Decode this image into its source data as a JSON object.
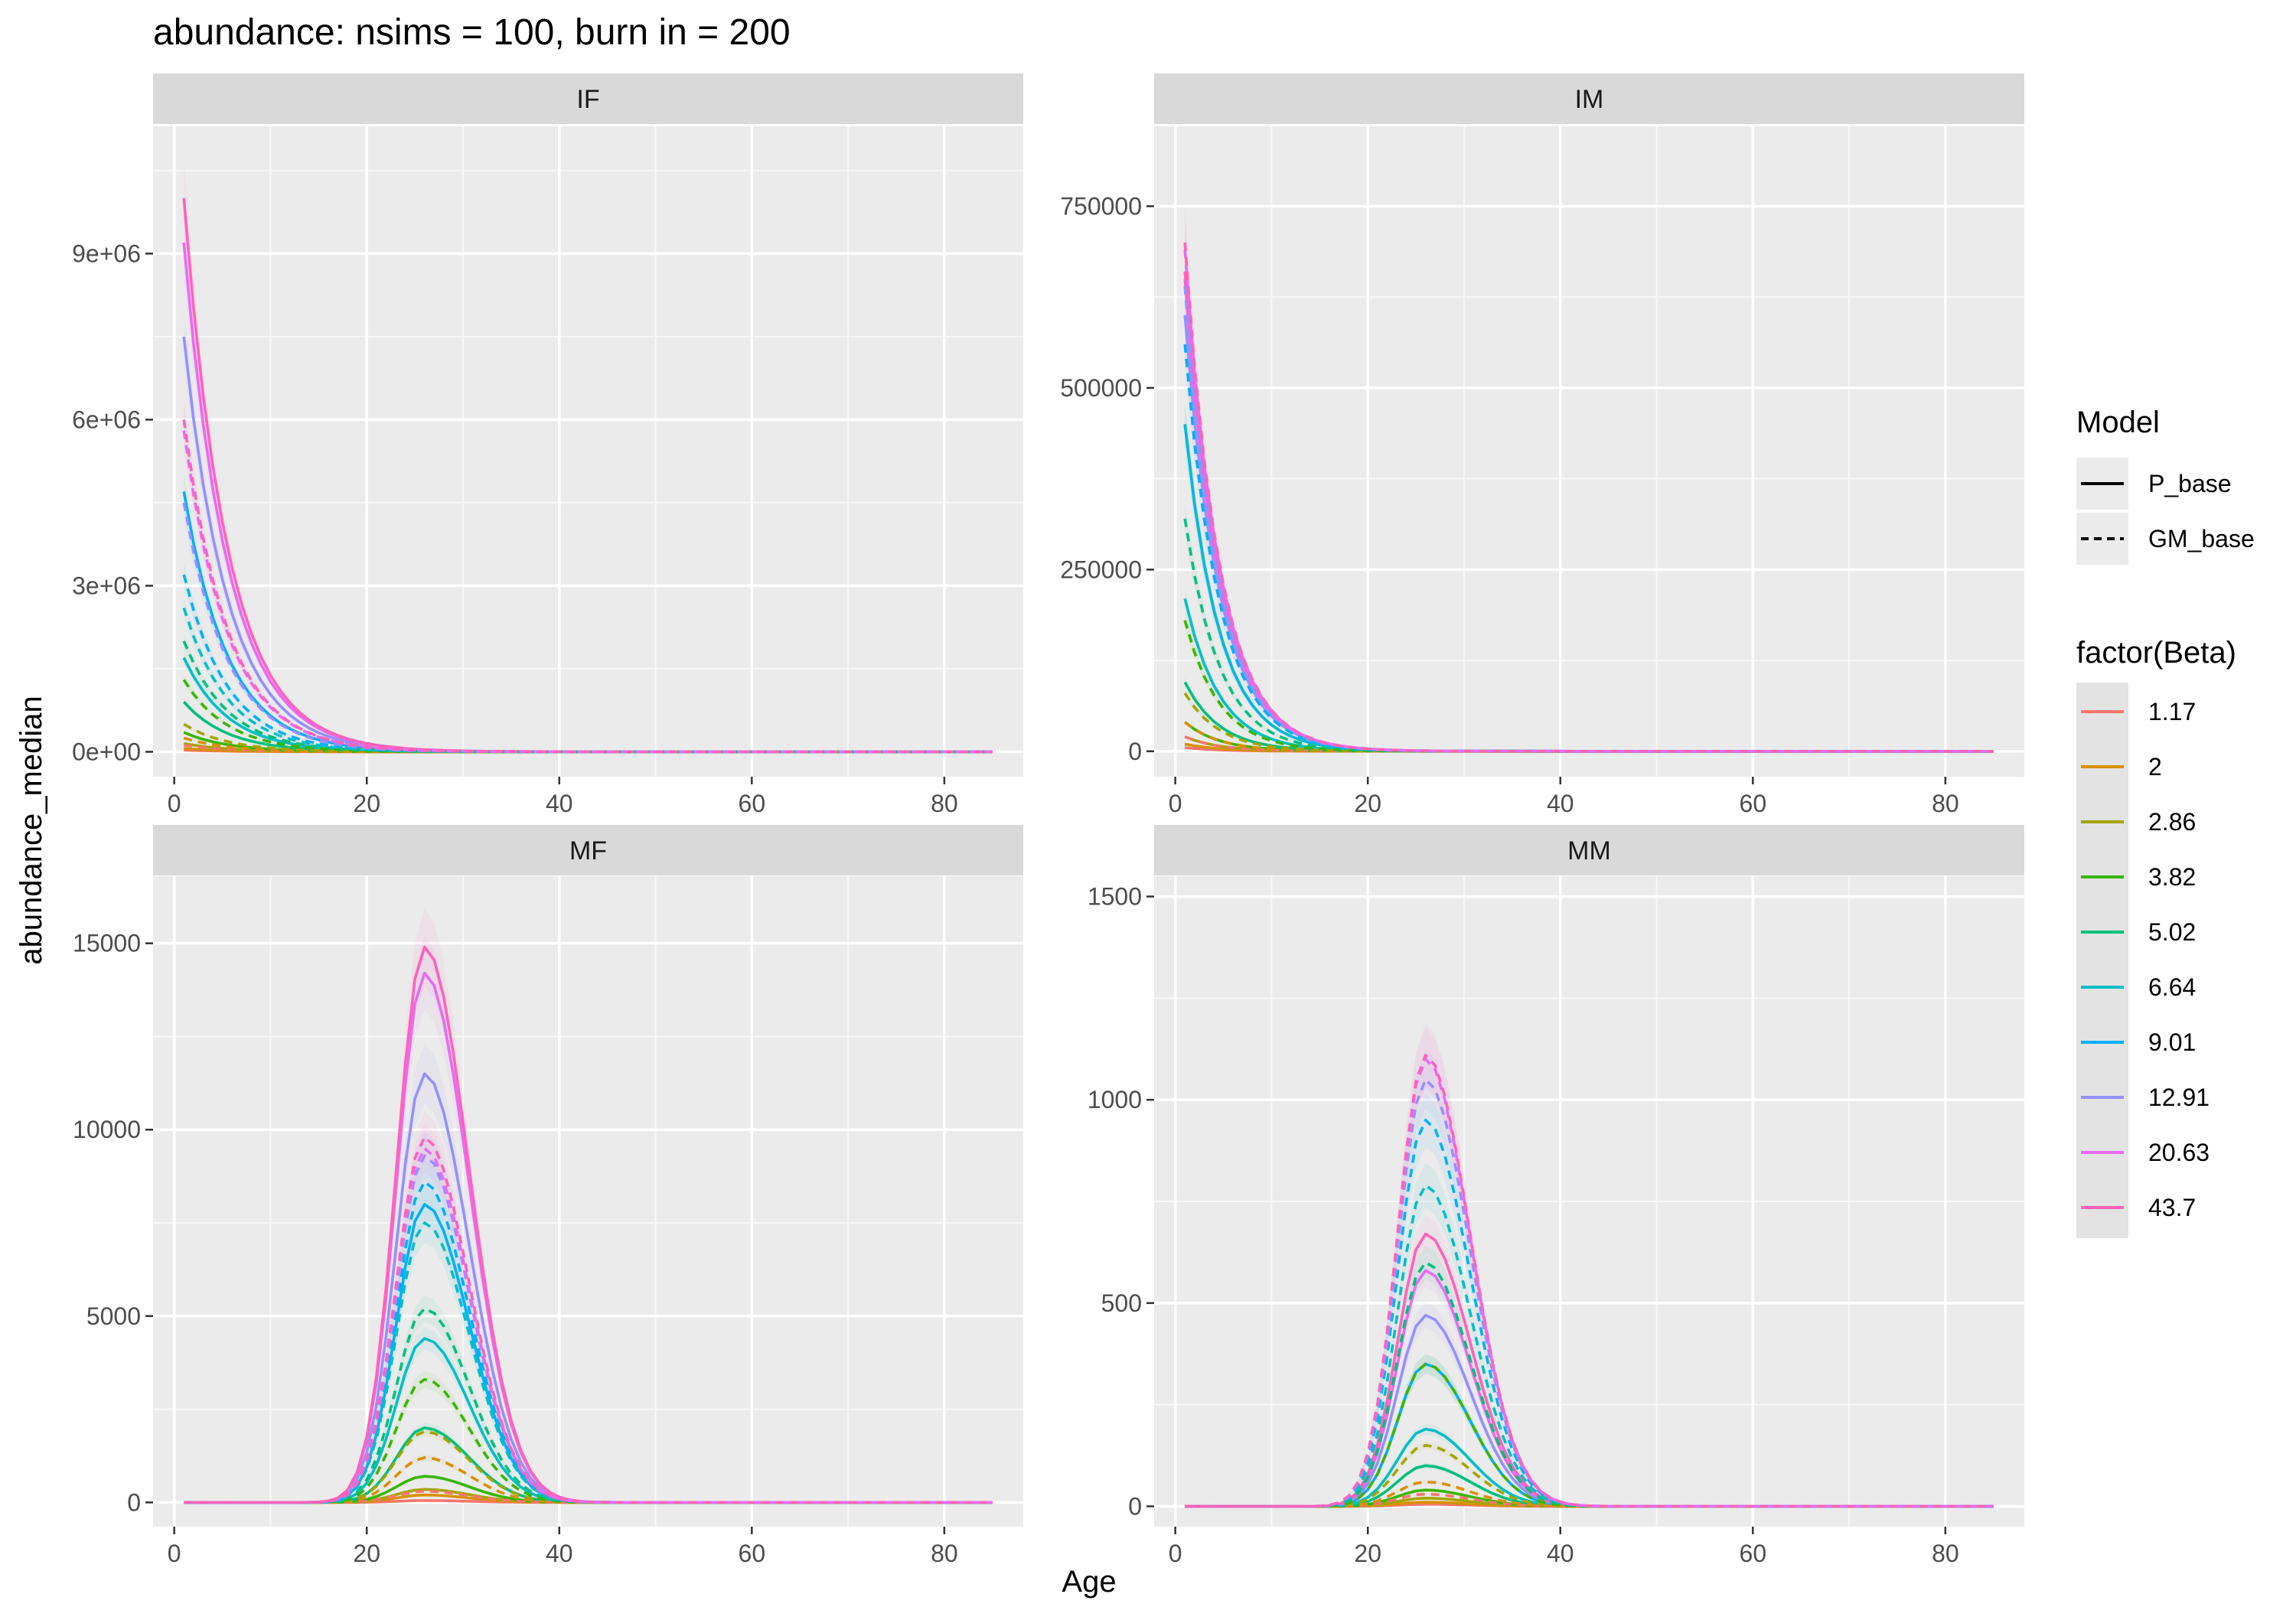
{
  "chart_data": {
    "type": "line",
    "title": "abundance: nsims = 100, burn in = 200",
    "xlabel": "Age",
    "ylabel": "abundance_median",
    "xlim": [
      1,
      85
    ],
    "x_ticks": [
      "0",
      "20",
      "40",
      "60",
      "80"
    ],
    "legend_placement": "right",
    "grid": true,
    "legend": {
      "linetype_title": "Model",
      "linetype_entries": [
        {
          "label": "P_base",
          "dash": "solid"
        },
        {
          "label": "GM_base",
          "dash": "dashed"
        }
      ],
      "color_title": "factor(Beta)",
      "color_entries": [
        {
          "label": "1.17",
          "color": "#F8766D"
        },
        {
          "label": "2",
          "color": "#D89000"
        },
        {
          "label": "2.86",
          "color": "#A3A500"
        },
        {
          "label": "3.82",
          "color": "#39B600"
        },
        {
          "label": "5.02",
          "color": "#00BF7D"
        },
        {
          "label": "6.64",
          "color": "#00BFC4"
        },
        {
          "label": "9.01",
          "color": "#00B0F6"
        },
        {
          "label": "12.91",
          "color": "#9590FF"
        },
        {
          "label": "20.63",
          "color": "#E76BF3"
        },
        {
          "label": "43.7",
          "color": "#FF62BC"
        }
      ]
    },
    "panels": [
      {
        "strip": "IF",
        "ylim": [
          -450000,
          11300000
        ],
        "y_ticks": [
          {
            "value": 0,
            "label": "0e+00"
          },
          {
            "value": 3000000,
            "label": "3e+06"
          },
          {
            "value": 6000000,
            "label": "6e+06"
          },
          {
            "value": 9000000,
            "label": "9e+06"
          }
        ],
        "shape": "decay",
        "peak_age": 1,
        "decay_rate": 0.22,
        "peaks": {
          "P_base": [
            30000,
            60000,
            150000,
            350000,
            900000,
            1700000,
            4700000,
            7500000,
            9200000,
            10000000
          ],
          "GM_base": [
            120000,
            250000,
            500000,
            1300000,
            2000000,
            2600000,
            3200000,
            4500000,
            5800000,
            6000000
          ]
        }
      },
      {
        "strip": "IM",
        "ylim": [
          -35000,
          860000
        ],
        "y_ticks": [
          {
            "value": 0,
            "label": "0"
          },
          {
            "value": 250000,
            "label": "250000"
          },
          {
            "value": 500000,
            "label": "500000"
          },
          {
            "value": 750000,
            "label": "750000"
          }
        ],
        "shape": "decay",
        "peak_age": 1,
        "decay_rate": 0.28,
        "peaks": {
          "P_base": [
            5000,
            10000,
            20000,
            40000,
            95000,
            210000,
            450000,
            600000,
            650000,
            660000
          ],
          "GM_base": [
            20000,
            40000,
            80000,
            180000,
            320000,
            450000,
            560000,
            640000,
            690000,
            700000
          ]
        }
      },
      {
        "strip": "MF",
        "ylim": [
          -650,
          16800
        ],
        "y_ticks": [
          {
            "value": 0,
            "label": "0"
          },
          {
            "value": 5000,
            "label": "5000"
          },
          {
            "value": 10000,
            "label": "10000"
          },
          {
            "value": 15000,
            "label": "15000"
          }
        ],
        "shape": "peak",
        "peak_age": 26,
        "peaks": {
          "P_base": [
            50,
            200,
            350,
            700,
            2000,
            4400,
            8000,
            11500,
            14200,
            14900
          ],
          "GM_base": [
            300,
            1200,
            1900,
            3300,
            5200,
            7500,
            8600,
            9300,
            9500,
            9800
          ]
        }
      },
      {
        "strip": "MM",
        "ylim": [
          -50,
          1550
        ],
        "y_ticks": [
          {
            "value": 0,
            "label": "0"
          },
          {
            "value": 500,
            "label": "500"
          },
          {
            "value": 1000,
            "label": "1000"
          },
          {
            "value": 1500,
            "label": "1500"
          }
        ],
        "shape": "peak",
        "peak_age": 26,
        "peaks": {
          "P_base": [
            5,
            10,
            20,
            40,
            100,
            190,
            350,
            470,
            580,
            670
          ],
          "GM_base": [
            30,
            60,
            150,
            350,
            600,
            790,
            950,
            1050,
            1100,
            1110
          ]
        }
      }
    ]
  }
}
